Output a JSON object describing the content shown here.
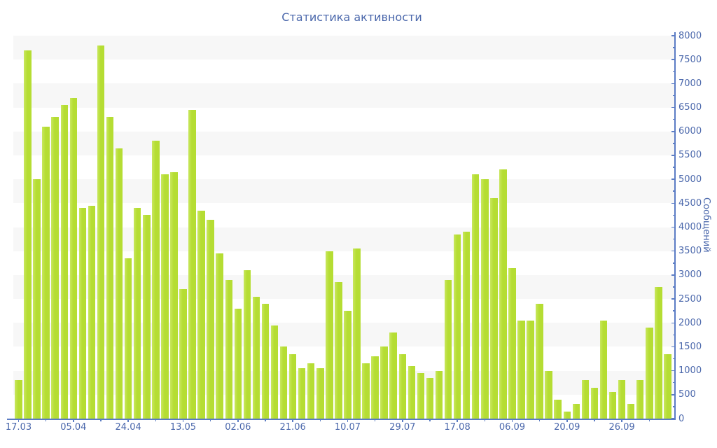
{
  "title": "Статистика активности",
  "chart_data": {
    "type": "bar",
    "title": "Статистика активности",
    "xlabel": "",
    "ylabel": "Сообщений",
    "ylim": [
      0,
      8000
    ],
    "y_tick_step": 500,
    "y_minor_tick_step": 250,
    "legend": "none",
    "grid": "alternating horizontal bands every 500 units",
    "x_tick_labels": [
      "17.03",
      "05.04",
      "24.04",
      "13.05",
      "02.06",
      "21.06",
      "10.07",
      "29.07",
      "17.08",
      "06.09",
      "20.09",
      "26.09"
    ],
    "x_label_every_n_bars": 6,
    "x_minor_tick_every_n_bars": 3,
    "values": [
      800,
      7700,
      5000,
      6100,
      6300,
      6550,
      6700,
      4400,
      4450,
      7800,
      6300,
      5650,
      3350,
      4400,
      4250,
      5800,
      5100,
      5150,
      2700,
      6450,
      4350,
      4150,
      3450,
      2900,
      2300,
      3100,
      2550,
      2400,
      1950,
      1500,
      1350,
      1050,
      1150,
      1050,
      3500,
      2850,
      2250,
      3550,
      1150,
      1300,
      1500,
      1800,
      1350,
      1100,
      950,
      850,
      1000,
      2900,
      3850,
      3900,
      5100,
      5000,
      4600,
      5200,
      3150,
      2050,
      2050,
      2400,
      1000,
      400,
      150,
      300,
      800,
      650,
      2050,
      550,
      800,
      300,
      800,
      1900,
      2750,
      1350
    ],
    "bar_color": "#b5dd33",
    "bar_highlight_color": "#c9e75f",
    "stripe_color": "#f7f7f7",
    "axis_line_color": "#5b7cc4",
    "axis_text_color": "#4a67ab"
  }
}
